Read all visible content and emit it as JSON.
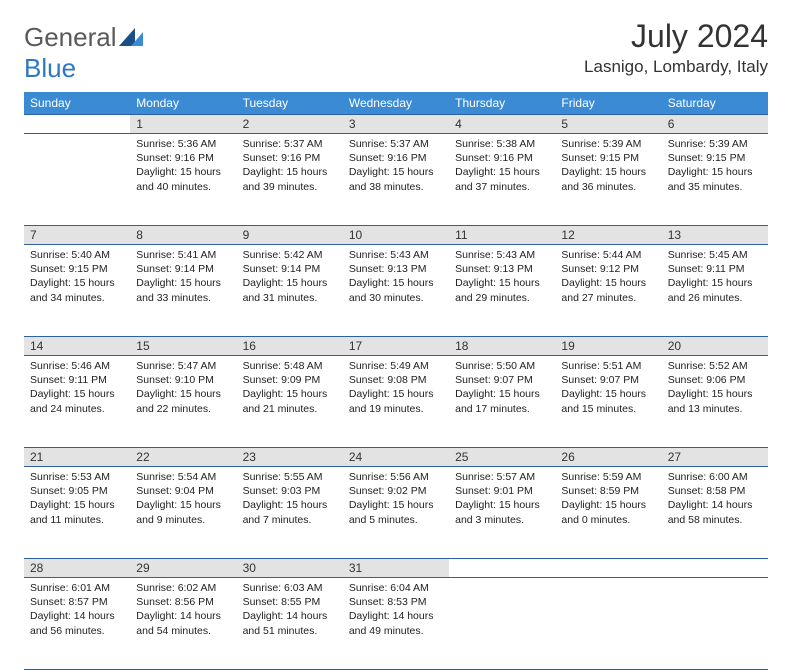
{
  "logo": {
    "text1": "General",
    "text2": "Blue"
  },
  "title": "July 2024",
  "location": "Lasnigo, Lombardy, Italy",
  "colors": {
    "header_bg": "#3b8bd4",
    "daynum_bg": "#e3e3e3",
    "row_border": "#2f5f9e",
    "logo_gray": "#5a5a5a",
    "logo_blue": "#2f78c3"
  },
  "daysOfWeek": [
    "Sunday",
    "Monday",
    "Tuesday",
    "Wednesday",
    "Thursday",
    "Friday",
    "Saturday"
  ],
  "weeks": [
    {
      "nums": [
        "",
        "1",
        "2",
        "3",
        "4",
        "5",
        "6"
      ],
      "cells": [
        null,
        {
          "sr": "Sunrise: 5:36 AM",
          "ss": "Sunset: 9:16 PM",
          "dl": "Daylight: 15 hours and 40 minutes."
        },
        {
          "sr": "Sunrise: 5:37 AM",
          "ss": "Sunset: 9:16 PM",
          "dl": "Daylight: 15 hours and 39 minutes."
        },
        {
          "sr": "Sunrise: 5:37 AM",
          "ss": "Sunset: 9:16 PM",
          "dl": "Daylight: 15 hours and 38 minutes."
        },
        {
          "sr": "Sunrise: 5:38 AM",
          "ss": "Sunset: 9:16 PM",
          "dl": "Daylight: 15 hours and 37 minutes."
        },
        {
          "sr": "Sunrise: 5:39 AM",
          "ss": "Sunset: 9:15 PM",
          "dl": "Daylight: 15 hours and 36 minutes."
        },
        {
          "sr": "Sunrise: 5:39 AM",
          "ss": "Sunset: 9:15 PM",
          "dl": "Daylight: 15 hours and 35 minutes."
        }
      ]
    },
    {
      "nums": [
        "7",
        "8",
        "9",
        "10",
        "11",
        "12",
        "13"
      ],
      "cells": [
        {
          "sr": "Sunrise: 5:40 AM",
          "ss": "Sunset: 9:15 PM",
          "dl": "Daylight: 15 hours and 34 minutes."
        },
        {
          "sr": "Sunrise: 5:41 AM",
          "ss": "Sunset: 9:14 PM",
          "dl": "Daylight: 15 hours and 33 minutes."
        },
        {
          "sr": "Sunrise: 5:42 AM",
          "ss": "Sunset: 9:14 PM",
          "dl": "Daylight: 15 hours and 31 minutes."
        },
        {
          "sr": "Sunrise: 5:43 AM",
          "ss": "Sunset: 9:13 PM",
          "dl": "Daylight: 15 hours and 30 minutes."
        },
        {
          "sr": "Sunrise: 5:43 AM",
          "ss": "Sunset: 9:13 PM",
          "dl": "Daylight: 15 hours and 29 minutes."
        },
        {
          "sr": "Sunrise: 5:44 AM",
          "ss": "Sunset: 9:12 PM",
          "dl": "Daylight: 15 hours and 27 minutes."
        },
        {
          "sr": "Sunrise: 5:45 AM",
          "ss": "Sunset: 9:11 PM",
          "dl": "Daylight: 15 hours and 26 minutes."
        }
      ]
    },
    {
      "nums": [
        "14",
        "15",
        "16",
        "17",
        "18",
        "19",
        "20"
      ],
      "cells": [
        {
          "sr": "Sunrise: 5:46 AM",
          "ss": "Sunset: 9:11 PM",
          "dl": "Daylight: 15 hours and 24 minutes."
        },
        {
          "sr": "Sunrise: 5:47 AM",
          "ss": "Sunset: 9:10 PM",
          "dl": "Daylight: 15 hours and 22 minutes."
        },
        {
          "sr": "Sunrise: 5:48 AM",
          "ss": "Sunset: 9:09 PM",
          "dl": "Daylight: 15 hours and 21 minutes."
        },
        {
          "sr": "Sunrise: 5:49 AM",
          "ss": "Sunset: 9:08 PM",
          "dl": "Daylight: 15 hours and 19 minutes."
        },
        {
          "sr": "Sunrise: 5:50 AM",
          "ss": "Sunset: 9:07 PM",
          "dl": "Daylight: 15 hours and 17 minutes."
        },
        {
          "sr": "Sunrise: 5:51 AM",
          "ss": "Sunset: 9:07 PM",
          "dl": "Daylight: 15 hours and 15 minutes."
        },
        {
          "sr": "Sunrise: 5:52 AM",
          "ss": "Sunset: 9:06 PM",
          "dl": "Daylight: 15 hours and 13 minutes."
        }
      ]
    },
    {
      "nums": [
        "21",
        "22",
        "23",
        "24",
        "25",
        "26",
        "27"
      ],
      "cells": [
        {
          "sr": "Sunrise: 5:53 AM",
          "ss": "Sunset: 9:05 PM",
          "dl": "Daylight: 15 hours and 11 minutes."
        },
        {
          "sr": "Sunrise: 5:54 AM",
          "ss": "Sunset: 9:04 PM",
          "dl": "Daylight: 15 hours and 9 minutes."
        },
        {
          "sr": "Sunrise: 5:55 AM",
          "ss": "Sunset: 9:03 PM",
          "dl": "Daylight: 15 hours and 7 minutes."
        },
        {
          "sr": "Sunrise: 5:56 AM",
          "ss": "Sunset: 9:02 PM",
          "dl": "Daylight: 15 hours and 5 minutes."
        },
        {
          "sr": "Sunrise: 5:57 AM",
          "ss": "Sunset: 9:01 PM",
          "dl": "Daylight: 15 hours and 3 minutes."
        },
        {
          "sr": "Sunrise: 5:59 AM",
          "ss": "Sunset: 8:59 PM",
          "dl": "Daylight: 15 hours and 0 minutes."
        },
        {
          "sr": "Sunrise: 6:00 AM",
          "ss": "Sunset: 8:58 PM",
          "dl": "Daylight: 14 hours and 58 minutes."
        }
      ]
    },
    {
      "nums": [
        "28",
        "29",
        "30",
        "31",
        "",
        "",
        ""
      ],
      "cells": [
        {
          "sr": "Sunrise: 6:01 AM",
          "ss": "Sunset: 8:57 PM",
          "dl": "Daylight: 14 hours and 56 minutes."
        },
        {
          "sr": "Sunrise: 6:02 AM",
          "ss": "Sunset: 8:56 PM",
          "dl": "Daylight: 14 hours and 54 minutes."
        },
        {
          "sr": "Sunrise: 6:03 AM",
          "ss": "Sunset: 8:55 PM",
          "dl": "Daylight: 14 hours and 51 minutes."
        },
        {
          "sr": "Sunrise: 6:04 AM",
          "ss": "Sunset: 8:53 PM",
          "dl": "Daylight: 14 hours and 49 minutes."
        },
        null,
        null,
        null
      ]
    }
  ]
}
